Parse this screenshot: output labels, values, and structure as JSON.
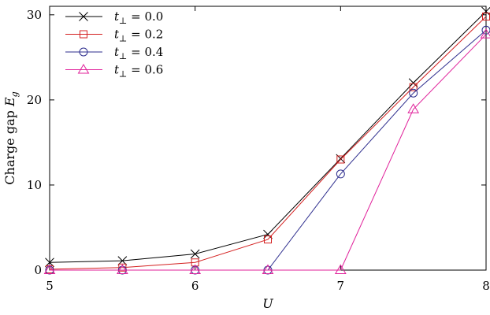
{
  "chart_data": {
    "type": "line",
    "xlabel": "U",
    "ylabel": "Charge gap E_g",
    "ylabel_parts": {
      "text": "Charge gap ",
      "var": "E",
      "sub": "g"
    },
    "xlim": [
      5,
      8
    ],
    "ylim": [
      0,
      31
    ],
    "x_ticks": [
      5,
      6,
      7,
      8
    ],
    "y_ticks": [
      0,
      10,
      20,
      30
    ],
    "grid": false,
    "legend_position": "top-left",
    "x": [
      5,
      5.5,
      6,
      6.5,
      7,
      7.5,
      8
    ],
    "series": [
      {
        "name": "t⊥ = 0.0",
        "name_parts": {
          "var": "t",
          "sub": "⊥",
          "rest": " = 0.0"
        },
        "marker": "x",
        "color": "#000000",
        "values": [
          0.9,
          1.1,
          1.9,
          4.2,
          13.1,
          22.0,
          30.4
        ]
      },
      {
        "name": "t⊥ = 0.2",
        "name_parts": {
          "var": "t",
          "sub": "⊥",
          "rest": " = 0.2"
        },
        "marker": "square",
        "color": "#d42020",
        "values": [
          0.1,
          0.3,
          0.9,
          3.6,
          13.0,
          21.5,
          29.8
        ]
      },
      {
        "name": "t⊥ = 0.4",
        "name_parts": {
          "var": "t",
          "sub": "⊥",
          "rest": " = 0.4"
        },
        "marker": "circle",
        "color": "#2e2e8e",
        "values": [
          0.0,
          0.0,
          0.0,
          0.0,
          11.3,
          20.8,
          28.2
        ]
      },
      {
        "name": "t⊥ = 0.6",
        "name_parts": {
          "var": "t",
          "sub": "⊥",
          "rest": " = 0.6"
        },
        "marker": "triangle",
        "color": "#e0209a",
        "values": [
          0.0,
          0.0,
          0.0,
          0.0,
          0.0,
          18.9,
          27.7
        ]
      }
    ]
  }
}
